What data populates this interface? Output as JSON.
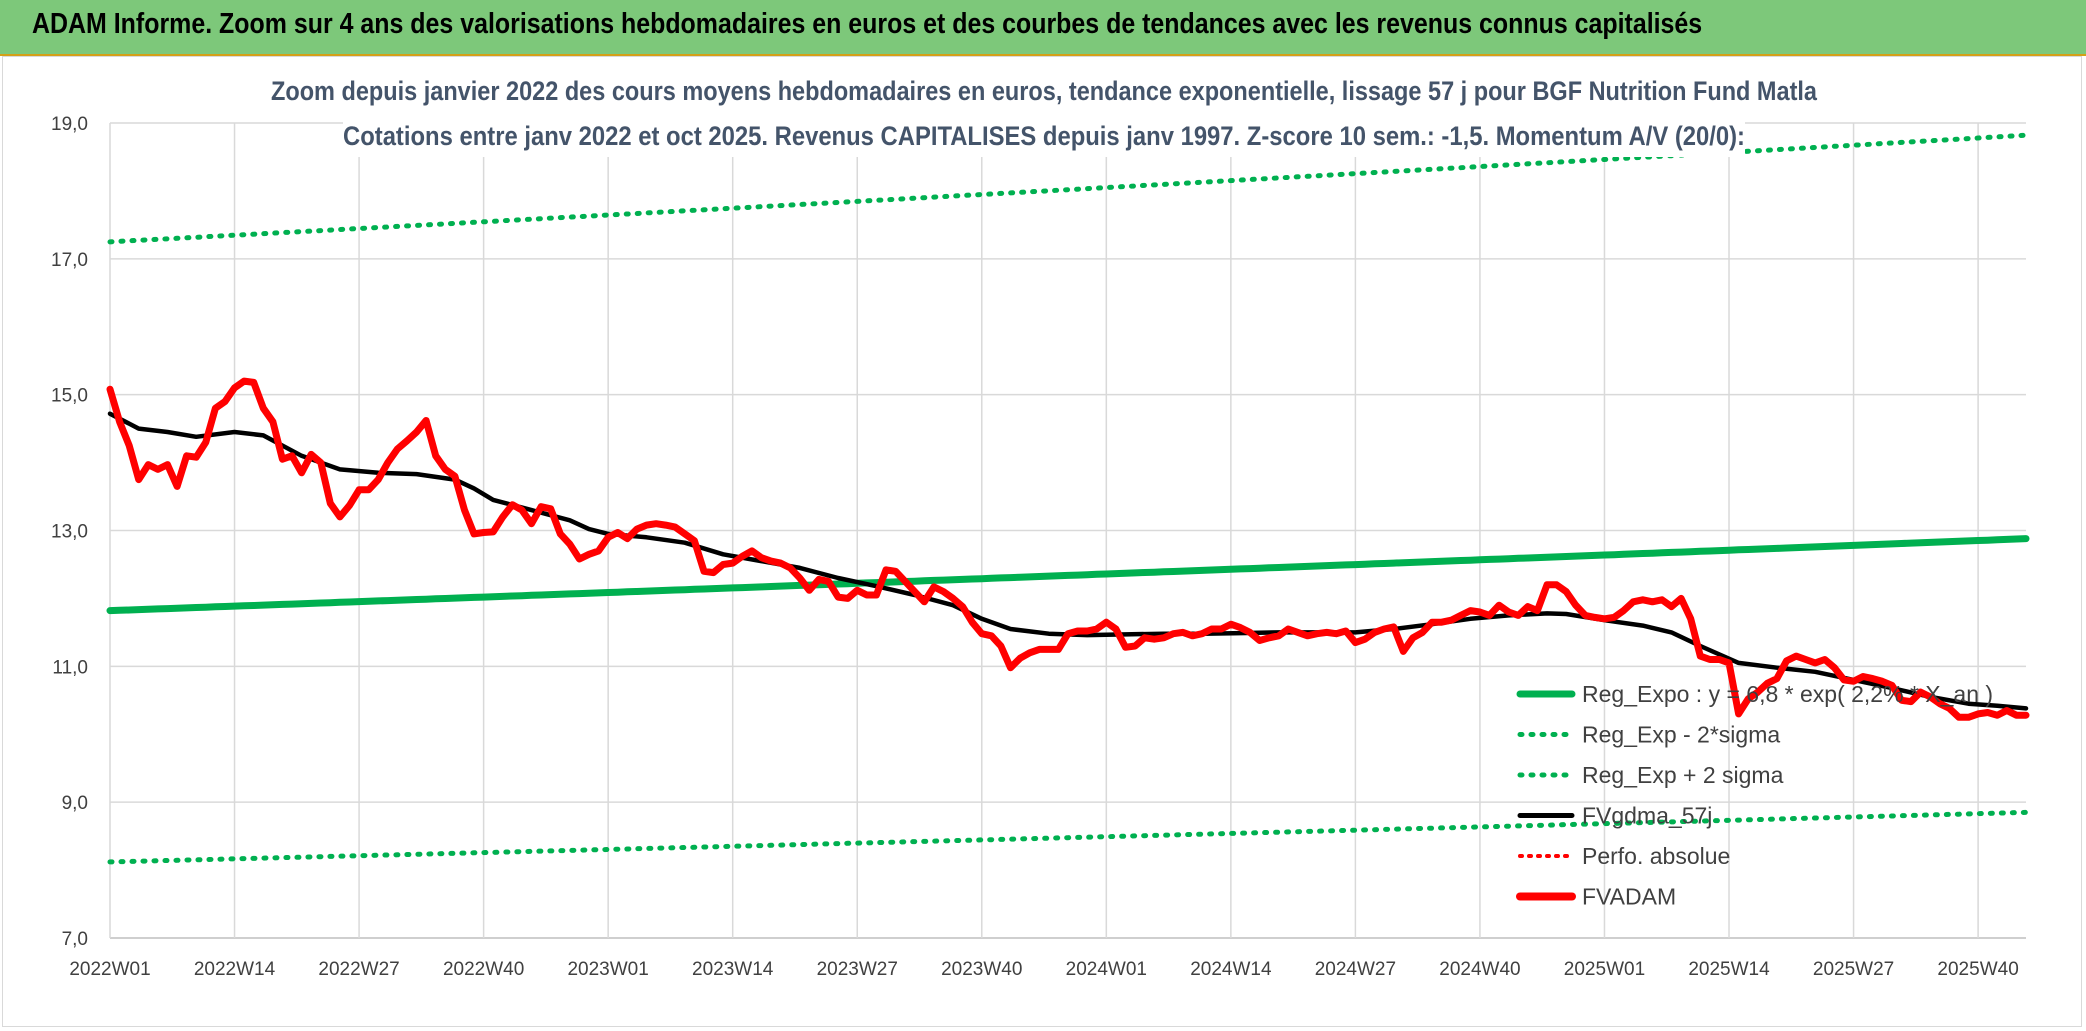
{
  "banner": {
    "title": "ADAM Informe. Zoom sur 4 ans des valorisations hebdomadaires en euros et des courbes de tendances avec les revenus connus capitalisés"
  },
  "colors": {
    "banner_bg": "#7dc87a",
    "trend": "#00b050",
    "band": "#00b050",
    "smooth": "#000000",
    "fvadam": "#ff0000",
    "perfo": "#ff0000",
    "grid": "#d9d9d9"
  },
  "chart_data": {
    "type": "line",
    "title_lines": [
      "Zoom depuis janvier 2022 des cours moyens hebdomadaires en euros, tendance exponentielle, lissage 57 j pour BGF Nutrition Fund Matla",
      "Cotations entre janv 2022 et oct 2025. Revenus CAPITALISES depuis janv 1997. Z-score 10 sem.: -1,5. Momentum A/V (20/0):"
    ],
    "ylim": [
      7.0,
      19.0
    ],
    "y_ticks": [
      "7,0",
      "9,0",
      "11,0",
      "13,0",
      "15,0",
      "17,0",
      "19,0"
    ],
    "x_tick_labels": [
      "2022W01",
      "2022W14",
      "2022W27",
      "2022W40",
      "2023W01",
      "2023W14",
      "2023W27",
      "2023W40",
      "2024W01",
      "2024W14",
      "2024W27",
      "2024W40",
      "2025W01",
      "2025W14",
      "2025W27",
      "2025W40"
    ],
    "x_tick_index": [
      0,
      13,
      26,
      39,
      52,
      65,
      78,
      91,
      104,
      117,
      130,
      143,
      156,
      169,
      182,
      195
    ],
    "n_weeks": 201,
    "legend_position": "bottom-right",
    "legend": [
      {
        "name": "Reg_Expo : y = 6,8 * exp( 2,2% * X_an )",
        "style": "solid-green"
      },
      {
        "name": "Reg_Exp - 2*sigma",
        "style": "dotted-green"
      },
      {
        "name": "Reg_Exp + 2 sigma",
        "style": "dotted-green"
      },
      {
        "name": "FVgdma_57j",
        "style": "solid-black"
      },
      {
        "name": "Perfo. absolue",
        "style": "dotted-red"
      },
      {
        "name": "FVADAM",
        "style": "solid-red-thick"
      }
    ],
    "series": [
      {
        "name": "Reg_Expo : y = 6,8 * exp( 2,2% * X_an )",
        "start": 11.82,
        "end": 12.88
      },
      {
        "name": "Reg_Exp - 2*sigma",
        "start": 8.12,
        "end": 8.85
      },
      {
        "name": "Reg_Exp + 2 sigma",
        "start": 17.25,
        "end": 18.82
      },
      {
        "name": "FVgdma_57j",
        "points": [
          [
            0,
            14.72
          ],
          [
            3,
            14.5
          ],
          [
            6,
            14.45
          ],
          [
            9,
            14.38
          ],
          [
            13,
            14.45
          ],
          [
            16,
            14.4
          ],
          [
            20,
            14.1
          ],
          [
            24,
            13.9
          ],
          [
            28,
            13.85
          ],
          [
            32,
            13.83
          ],
          [
            36,
            13.75
          ],
          [
            38,
            13.62
          ],
          [
            40,
            13.45
          ],
          [
            44,
            13.3
          ],
          [
            48,
            13.15
          ],
          [
            50,
            13.02
          ],
          [
            52,
            12.95
          ],
          [
            56,
            12.9
          ],
          [
            60,
            12.82
          ],
          [
            64,
            12.65
          ],
          [
            68,
            12.55
          ],
          [
            72,
            12.45
          ],
          [
            76,
            12.3
          ],
          [
            80,
            12.18
          ],
          [
            84,
            12.05
          ],
          [
            88,
            11.9
          ],
          [
            91,
            11.7
          ],
          [
            94,
            11.55
          ],
          [
            98,
            11.48
          ],
          [
            102,
            11.46
          ],
          [
            106,
            11.47
          ],
          [
            110,
            11.48
          ],
          [
            114,
            11.48
          ],
          [
            118,
            11.49
          ],
          [
            122,
            11.5
          ],
          [
            126,
            11.5
          ],
          [
            130,
            11.5
          ],
          [
            134,
            11.55
          ],
          [
            138,
            11.62
          ],
          [
            142,
            11.7
          ],
          [
            146,
            11.75
          ],
          [
            150,
            11.78
          ],
          [
            152,
            11.77
          ],
          [
            156,
            11.68
          ],
          [
            160,
            11.6
          ],
          [
            163,
            11.5
          ],
          [
            166,
            11.3
          ],
          [
            170,
            11.05
          ],
          [
            174,
            10.98
          ],
          [
            178,
            10.92
          ],
          [
            182,
            10.8
          ],
          [
            186,
            10.68
          ],
          [
            190,
            10.55
          ],
          [
            194,
            10.45
          ],
          [
            197,
            10.42
          ],
          [
            200,
            10.38
          ]
        ]
      },
      {
        "name": "FVADAM",
        "points": [
          [
            0,
            15.08
          ],
          [
            1,
            14.6
          ],
          [
            2,
            14.25
          ],
          [
            3,
            13.75
          ],
          [
            4,
            13.97
          ],
          [
            5,
            13.9
          ],
          [
            6,
            13.97
          ],
          [
            7,
            13.65
          ],
          [
            8,
            14.1
          ],
          [
            9,
            14.08
          ],
          [
            10,
            14.3
          ],
          [
            11,
            14.8
          ],
          [
            12,
            14.9
          ],
          [
            13,
            15.1
          ],
          [
            14,
            15.2
          ],
          [
            15,
            15.18
          ],
          [
            16,
            14.8
          ],
          [
            17,
            14.6
          ],
          [
            18,
            14.05
          ],
          [
            19,
            14.1
          ],
          [
            20,
            13.85
          ],
          [
            21,
            14.12
          ],
          [
            22,
            14.0
          ],
          [
            23,
            13.4
          ],
          [
            24,
            13.2
          ],
          [
            25,
            13.37
          ],
          [
            26,
            13.6
          ],
          [
            27,
            13.6
          ],
          [
            28,
            13.75
          ],
          [
            29,
            14.0
          ],
          [
            30,
            14.2
          ],
          [
            31,
            14.32
          ],
          [
            32,
            14.45
          ],
          [
            33,
            14.62
          ],
          [
            34,
            14.1
          ],
          [
            35,
            13.9
          ],
          [
            36,
            13.8
          ],
          [
            37,
            13.3
          ],
          [
            38,
            12.95
          ],
          [
            39,
            12.97
          ],
          [
            40,
            12.98
          ],
          [
            41,
            13.2
          ],
          [
            42,
            13.38
          ],
          [
            43,
            13.3
          ],
          [
            44,
            13.1
          ],
          [
            45,
            13.35
          ],
          [
            46,
            13.32
          ],
          [
            47,
            12.95
          ],
          [
            48,
            12.8
          ],
          [
            49,
            12.58
          ],
          [
            50,
            12.65
          ],
          [
            51,
            12.7
          ],
          [
            52,
            12.9
          ],
          [
            53,
            12.97
          ],
          [
            54,
            12.88
          ],
          [
            55,
            13.02
          ],
          [
            56,
            13.08
          ],
          [
            57,
            13.1
          ],
          [
            58,
            13.08
          ],
          [
            59,
            13.05
          ],
          [
            60,
            12.95
          ],
          [
            61,
            12.85
          ],
          [
            62,
            12.4
          ],
          [
            63,
            12.38
          ],
          [
            64,
            12.5
          ],
          [
            65,
            12.52
          ],
          [
            66,
            12.62
          ],
          [
            67,
            12.7
          ],
          [
            68,
            12.6
          ],
          [
            69,
            12.55
          ],
          [
            70,
            12.52
          ],
          [
            71,
            12.45
          ],
          [
            72,
            12.3
          ],
          [
            73,
            12.12
          ],
          [
            74,
            12.28
          ],
          [
            75,
            12.25
          ],
          [
            76,
            12.02
          ],
          [
            77,
            12.0
          ],
          [
            78,
            12.12
          ],
          [
            79,
            12.05
          ],
          [
            80,
            12.05
          ],
          [
            81,
            12.42
          ],
          [
            82,
            12.4
          ],
          [
            83,
            12.25
          ],
          [
            84,
            12.1
          ],
          [
            85,
            11.95
          ],
          [
            86,
            12.17
          ],
          [
            87,
            12.1
          ],
          [
            88,
            12.0
          ],
          [
            89,
            11.88
          ],
          [
            90,
            11.65
          ],
          [
            91,
            11.48
          ],
          [
            92,
            11.45
          ],
          [
            93,
            11.3
          ],
          [
            94,
            10.98
          ],
          [
            95,
            11.12
          ],
          [
            96,
            11.2
          ],
          [
            97,
            11.25
          ],
          [
            98,
            11.25
          ],
          [
            99,
            11.25
          ],
          [
            100,
            11.48
          ],
          [
            101,
            11.52
          ],
          [
            102,
            11.52
          ],
          [
            103,
            11.55
          ],
          [
            104,
            11.65
          ],
          [
            105,
            11.55
          ],
          [
            106,
            11.28
          ],
          [
            107,
            11.3
          ],
          [
            108,
            11.42
          ],
          [
            109,
            11.4
          ],
          [
            110,
            11.42
          ],
          [
            111,
            11.48
          ],
          [
            112,
            11.5
          ],
          [
            113,
            11.45
          ],
          [
            114,
            11.48
          ],
          [
            115,
            11.55
          ],
          [
            116,
            11.55
          ],
          [
            117,
            11.62
          ],
          [
            118,
            11.57
          ],
          [
            119,
            11.5
          ],
          [
            120,
            11.38
          ],
          [
            121,
            11.42
          ],
          [
            122,
            11.45
          ],
          [
            123,
            11.55
          ],
          [
            124,
            11.5
          ],
          [
            125,
            11.45
          ],
          [
            126,
            11.48
          ],
          [
            127,
            11.5
          ],
          [
            128,
            11.48
          ],
          [
            129,
            11.52
          ],
          [
            130,
            11.35
          ],
          [
            131,
            11.4
          ],
          [
            132,
            11.5
          ],
          [
            133,
            11.55
          ],
          [
            134,
            11.58
          ],
          [
            135,
            11.22
          ],
          [
            136,
            11.42
          ],
          [
            137,
            11.5
          ],
          [
            138,
            11.65
          ],
          [
            139,
            11.65
          ],
          [
            140,
            11.68
          ],
          [
            141,
            11.75
          ],
          [
            142,
            11.82
          ],
          [
            143,
            11.8
          ],
          [
            144,
            11.75
          ],
          [
            145,
            11.9
          ],
          [
            146,
            11.8
          ],
          [
            147,
            11.75
          ],
          [
            148,
            11.88
          ],
          [
            149,
            11.82
          ],
          [
            150,
            12.2
          ],
          [
            151,
            12.2
          ],
          [
            152,
            12.1
          ],
          [
            153,
            11.9
          ],
          [
            154,
            11.75
          ],
          [
            155,
            11.72
          ],
          [
            156,
            11.7
          ],
          [
            157,
            11.72
          ],
          [
            158,
            11.82
          ],
          [
            159,
            11.95
          ],
          [
            160,
            11.98
          ],
          [
            161,
            11.95
          ],
          [
            162,
            11.98
          ],
          [
            163,
            11.88
          ],
          [
            164,
            12.0
          ],
          [
            165,
            11.7
          ],
          [
            166,
            11.15
          ],
          [
            167,
            11.1
          ],
          [
            168,
            11.1
          ],
          [
            169,
            11.05
          ],
          [
            170,
            10.3
          ],
          [
            171,
            10.52
          ],
          [
            172,
            10.62
          ],
          [
            173,
            10.75
          ],
          [
            174,
            10.82
          ],
          [
            175,
            11.08
          ],
          [
            176,
            11.15
          ],
          [
            177,
            11.1
          ],
          [
            178,
            11.05
          ],
          [
            179,
            11.1
          ],
          [
            180,
            10.98
          ],
          [
            181,
            10.8
          ],
          [
            182,
            10.78
          ],
          [
            183,
            10.85
          ],
          [
            184,
            10.82
          ],
          [
            185,
            10.78
          ],
          [
            186,
            10.72
          ],
          [
            187,
            10.5
          ],
          [
            188,
            10.48
          ],
          [
            189,
            10.62
          ],
          [
            190,
            10.55
          ],
          [
            191,
            10.45
          ],
          [
            192,
            10.38
          ],
          [
            193,
            10.25
          ],
          [
            194,
            10.25
          ],
          [
            195,
            10.3
          ],
          [
            196,
            10.32
          ],
          [
            197,
            10.28
          ],
          [
            198,
            10.35
          ],
          [
            199,
            10.28
          ],
          [
            200,
            10.28
          ]
        ]
      }
    ]
  }
}
